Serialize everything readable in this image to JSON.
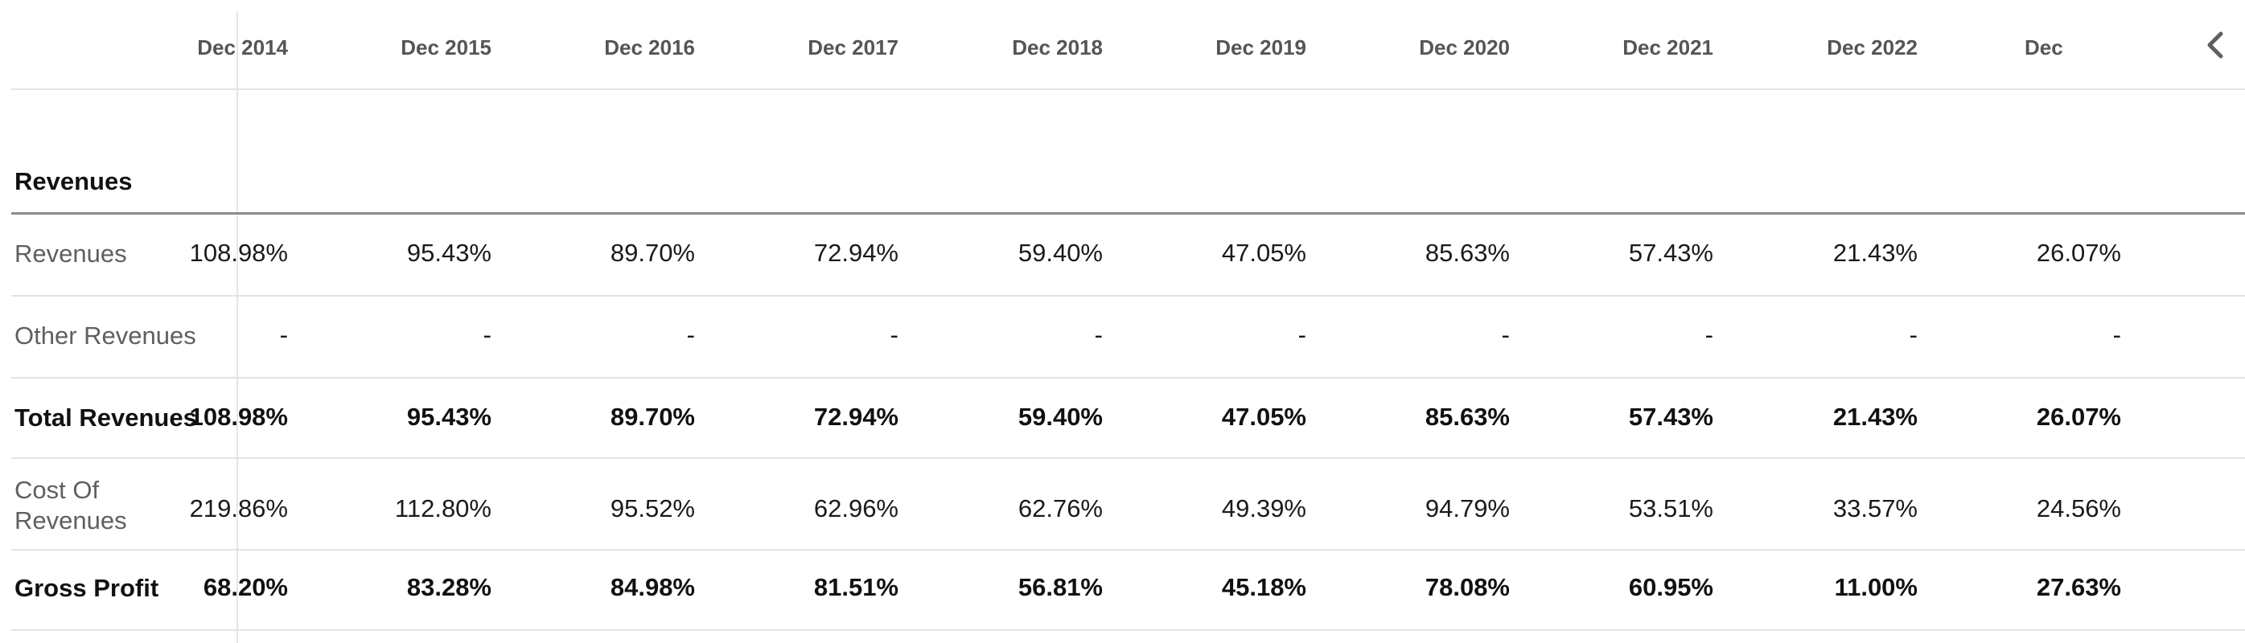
{
  "columns": [
    "Dec 2014",
    "Dec 2015",
    "Dec 2016",
    "Dec 2017",
    "Dec 2018",
    "Dec 2019",
    "Dec 2020",
    "Dec 2021",
    "Dec 2022",
    "Dec"
  ],
  "section": {
    "title": "Revenues"
  },
  "rows": [
    {
      "label": "Revenues",
      "bold": false,
      "values": [
        "108.98%",
        "95.43%",
        "89.70%",
        "72.94%",
        "59.40%",
        "47.05%",
        "85.63%",
        "57.43%",
        "21.43%",
        "26.07%"
      ]
    },
    {
      "label": "Other Revenues",
      "bold": false,
      "values": [
        "-",
        "-",
        "-",
        "-",
        "-",
        "-",
        "-",
        "-",
        "-",
        "-"
      ]
    },
    {
      "label": "Total Revenues",
      "bold": true,
      "values": [
        "108.98%",
        "95.43%",
        "89.70%",
        "72.94%",
        "59.40%",
        "47.05%",
        "85.63%",
        "57.43%",
        "21.43%",
        "26.07%"
      ]
    },
    {
      "label": "Cost Of Revenues",
      "bold": false,
      "values": [
        "219.86%",
        "112.80%",
        "95.52%",
        "62.96%",
        "62.76%",
        "49.39%",
        "94.79%",
        "53.51%",
        "33.57%",
        "24.56%"
      ]
    },
    {
      "label": "Gross Profit",
      "bold": true,
      "values": [
        "68.20%",
        "83.28%",
        "84.98%",
        "81.51%",
        "56.81%",
        "45.18%",
        "78.08%",
        "60.95%",
        "11.00%",
        "27.63%"
      ]
    }
  ],
  "icons": {
    "scroll_left": "chevron-left-icon"
  }
}
